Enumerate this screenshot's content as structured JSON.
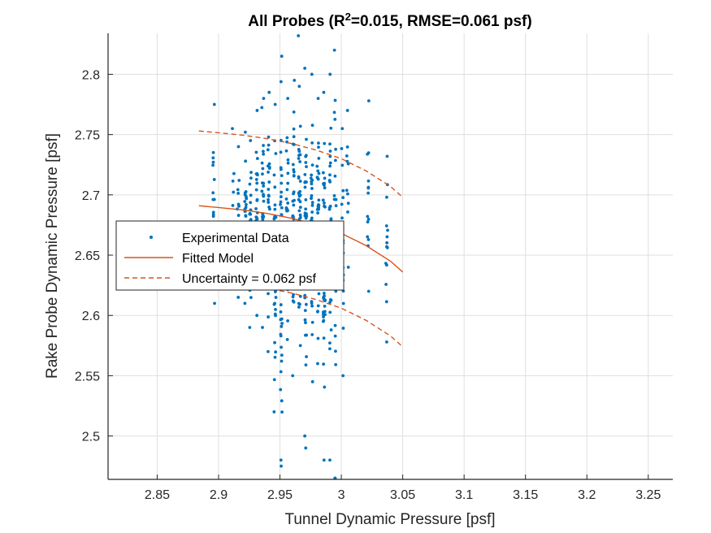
{
  "chart_data": {
    "type": "scatter",
    "title": {
      "prefix": "All Probes (R",
      "superscript": "2",
      "suffix": "=0.015, RMSE=0.061 psf)"
    },
    "xlabel": "Tunnel Dynamic Pressure [psf]",
    "ylabel": "Rake Probe Dynamic Pressure [psf]",
    "xlim": [
      2.81,
      3.27
    ],
    "ylim": [
      2.464,
      2.834
    ],
    "xticks": [
      2.85,
      2.9,
      2.95,
      3.0,
      3.05,
      3.1,
      3.15,
      3.2,
      3.25
    ],
    "xtick_labels": [
      "2.85",
      "2.9",
      "2.95",
      "3",
      "3.05",
      "3.1",
      "3.15",
      "3.2",
      "3.25"
    ],
    "yticks": [
      2.5,
      2.55,
      2.6,
      2.65,
      2.7,
      2.75,
      2.8
    ],
    "ytick_labels": [
      "2.5",
      "2.55",
      "2.6",
      "2.65",
      "2.7",
      "2.75",
      "2.8"
    ],
    "grid": true,
    "legend_placement": "center-left",
    "colors": {
      "data": "#0072BD",
      "model": "#D95319",
      "axes": "#262626",
      "grid": "#DFDFDF"
    },
    "series": [
      {
        "name": "Experimental Data",
        "style": "points",
        "columns": [
          {
            "x": 2.896,
            "y_range": [
              2.61,
              2.775
            ],
            "n": 14
          },
          {
            "x": 2.912,
            "y_range": [
              2.66,
              2.755
            ],
            "n": 6
          },
          {
            "x": 2.916,
            "y_range": [
              2.615,
              2.74
            ],
            "n": 20
          },
          {
            "x": 2.922,
            "y_range": [
              2.61,
              2.752
            ],
            "n": 25
          },
          {
            "x": 2.926,
            "y_range": [
              2.59,
              2.745
            ],
            "n": 30
          },
          {
            "x": 2.931,
            "y_range": [
              2.6,
              2.77
            ],
            "n": 30
          },
          {
            "x": 2.936,
            "y_range": [
              2.59,
              2.78
            ],
            "n": 35
          },
          {
            "x": 2.941,
            "y_range": [
              2.57,
              2.785
            ],
            "n": 35
          },
          {
            "x": 2.946,
            "y_range": [
              2.52,
              2.775
            ],
            "n": 35
          },
          {
            "x": 2.951,
            "y_range": [
              2.48,
              2.815
            ],
            "n": 55
          },
          {
            "x": 2.956,
            "y_range": [
              2.58,
              2.78
            ],
            "n": 40
          },
          {
            "x": 2.961,
            "y_range": [
              2.55,
              2.795
            ],
            "n": 45
          },
          {
            "x": 2.966,
            "y_range": [
              2.575,
              2.79
            ],
            "n": 45
          },
          {
            "x": 2.971,
            "y_range": [
              2.5,
              2.805
            ],
            "n": 50
          },
          {
            "x": 2.976,
            "y_range": [
              2.545,
              2.8
            ],
            "n": 45
          },
          {
            "x": 2.981,
            "y_range": [
              2.56,
              2.78
            ],
            "n": 45
          },
          {
            "x": 2.986,
            "y_range": [
              2.48,
              2.785
            ],
            "n": 40
          },
          {
            "x": 2.991,
            "y_range": [
              2.48,
              2.8
            ],
            "n": 40
          },
          {
            "x": 2.995,
            "y_range": [
              2.465,
              2.82
            ],
            "n": 30
          },
          {
            "x": 3.001,
            "y_range": [
              2.55,
              2.755
            ],
            "n": 25
          },
          {
            "x": 3.005,
            "y_range": [
              2.64,
              2.77
            ],
            "n": 10
          },
          {
            "x": 3.022,
            "y_range": [
              2.62,
              2.778
            ],
            "n": 14
          },
          {
            "x": 3.037,
            "y_range": [
              2.578,
              2.732
            ],
            "n": 14
          }
        ],
        "outliers": [
          {
            "x": 2.965,
            "y": 2.832
          },
          {
            "x": 2.995,
            "y": 2.465
          },
          {
            "x": 2.951,
            "y": 2.475
          },
          {
            "x": 2.971,
            "y": 2.49
          }
        ]
      },
      {
        "name": "Fitted Model",
        "style": "solid",
        "x": [
          2.884,
          2.9,
          2.92,
          2.94,
          2.96,
          2.98,
          3.0,
          3.02,
          3.04,
          3.05
        ],
        "y": [
          2.691,
          2.6895,
          2.6875,
          2.6845,
          2.6805,
          2.675,
          2.668,
          2.658,
          2.645,
          2.636
        ]
      },
      {
        "name": "Uncertainty = 0.062 psf",
        "style": "dashed",
        "x": [
          2.884,
          2.9,
          2.92,
          2.94,
          2.96,
          2.98,
          3.0,
          3.02,
          3.04,
          3.05
        ],
        "y": [
          2.753,
          2.7515,
          2.7495,
          2.7465,
          2.7425,
          2.737,
          2.73,
          2.72,
          2.707,
          2.698
        ]
      },
      {
        "name": "",
        "style": "dashed",
        "x": [
          2.884,
          2.9,
          2.92,
          2.94,
          2.96,
          2.98,
          3.0,
          3.02,
          3.04,
          3.05
        ],
        "y": [
          2.629,
          2.6275,
          2.6255,
          2.6225,
          2.6185,
          2.613,
          2.606,
          2.596,
          2.583,
          2.574
        ]
      }
    ]
  }
}
